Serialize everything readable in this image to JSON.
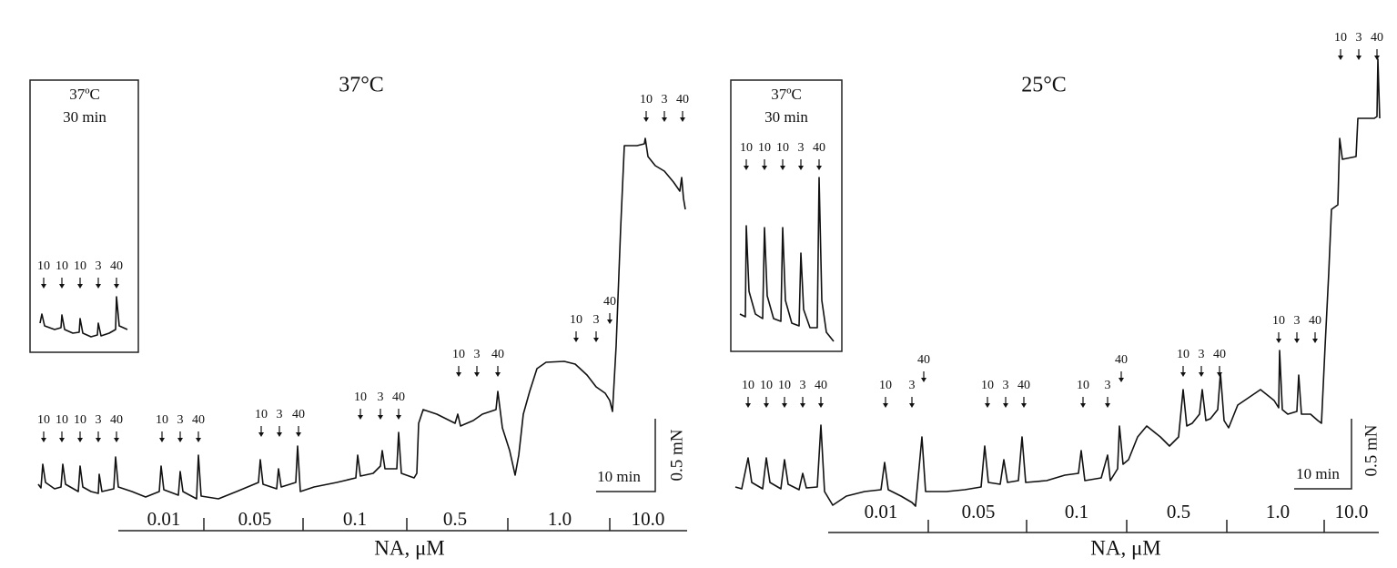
{
  "panels": [
    {
      "title": "37°C",
      "inset": {
        "title": "37ºC",
        "duration": "30 min",
        "markers": [
          "10",
          "10",
          "10",
          "3",
          "40"
        ]
      },
      "baseline_markers": [
        "10",
        "10",
        "10",
        "3",
        "40"
      ],
      "steps": [
        {
          "concentration": "0.01",
          "markers": [
            "10",
            "3",
            "40"
          ]
        },
        {
          "concentration": "0.05",
          "markers": [
            "10",
            "3",
            "40"
          ]
        },
        {
          "concentration": "0.1",
          "markers": [
            "10",
            "3",
            "40"
          ]
        },
        {
          "concentration": "0.5",
          "markers": [
            "10",
            "3",
            "40"
          ]
        },
        {
          "concentration": "1.0",
          "markers": [
            "10",
            "3",
            "40"
          ]
        },
        {
          "concentration": "10.0",
          "markers": [
            "10",
            "3",
            "40"
          ]
        }
      ],
      "axis_label": "NA, μM",
      "scale_time": "10 min",
      "scale_force": "0.5 mN"
    },
    {
      "title": "25°C",
      "inset": {
        "title": "37ºC",
        "duration": "30 min",
        "markers": [
          "10",
          "10",
          "10",
          "3",
          "40"
        ]
      },
      "baseline_markers": [
        "10",
        "10",
        "10",
        "3",
        "40"
      ],
      "steps": [
        {
          "concentration": "0.01",
          "markers": [
            "10",
            "3",
            "40"
          ]
        },
        {
          "concentration": "0.05",
          "markers": [
            "10",
            "3",
            "40"
          ]
        },
        {
          "concentration": "0.1",
          "markers": [
            "10",
            "3",
            "40"
          ]
        },
        {
          "concentration": "0.5",
          "markers": [
            "10",
            "3",
            "40"
          ]
        },
        {
          "concentration": "1.0",
          "markers": [
            "10",
            "3",
            "40"
          ]
        },
        {
          "concentration": "10.0",
          "markers": [
            "10",
            "3",
            "40"
          ]
        }
      ],
      "axis_label": "NA, μM",
      "scale_time": "10 min",
      "scale_force": "0.5 mN"
    }
  ]
}
